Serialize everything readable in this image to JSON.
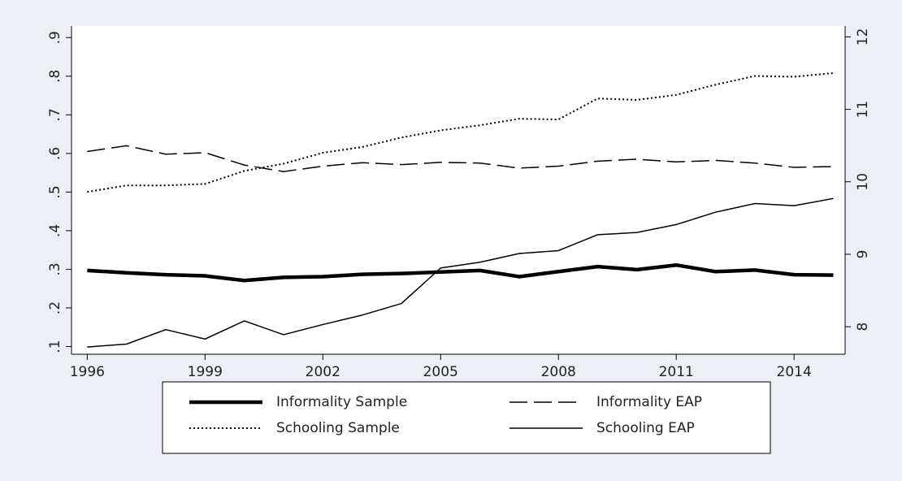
{
  "chart_data": {
    "type": "line",
    "x": [
      1996,
      1997,
      1998,
      1999,
      2000,
      2001,
      2002,
      2003,
      2004,
      2005,
      2006,
      2007,
      2008,
      2009,
      2010,
      2011,
      2012,
      2013,
      2014,
      2015
    ],
    "xlim": [
      1995.6,
      2015.3
    ],
    "xticks": [
      1996,
      1999,
      2002,
      2005,
      2008,
      2011,
      2014
    ],
    "ylim": [
      0.08,
      0.93
    ],
    "yticks": [
      {
        "value": 0.1,
        "label": ".1"
      },
      {
        "value": 0.2,
        "label": ".2"
      },
      {
        "value": 0.3,
        "label": ".3"
      },
      {
        "value": 0.4,
        "label": ".4"
      },
      {
        "value": 0.5,
        "label": ".5"
      },
      {
        "value": 0.6,
        "label": ".6"
      },
      {
        "value": 0.7,
        "label": ".7"
      },
      {
        "value": 0.8,
        "label": ".8"
      },
      {
        "value": 0.9,
        "label": ".9"
      }
    ],
    "y2lim": [
      7.62,
      12.15
    ],
    "y2ticks": [
      8,
      9,
      10,
      11,
      12
    ],
    "series": [
      {
        "name": "Informality Sample",
        "color": "#000000",
        "style": "thick",
        "values": [
          0.297,
          0.291,
          0.286,
          0.283,
          0.271,
          0.279,
          0.281,
          0.287,
          0.289,
          0.293,
          0.297,
          0.281,
          0.294,
          0.307,
          0.299,
          0.311,
          0.294,
          0.298,
          0.286,
          0.285
        ]
      },
      {
        "name": "Informality EAP",
        "color": "#000000",
        "style": "dashed",
        "values": [
          0.605,
          0.62,
          0.598,
          0.602,
          0.57,
          0.553,
          0.567,
          0.576,
          0.571,
          0.577,
          0.575,
          0.562,
          0.567,
          0.58,
          0.585,
          0.578,
          0.582,
          0.575,
          0.564,
          0.566
        ]
      },
      {
        "name": "Schooling Sample",
        "color": "#000000",
        "style": "dotted",
        "axis": "y2",
        "values": [
          9.86,
          9.95,
          9.95,
          9.97,
          10.15,
          10.25,
          10.4,
          10.48,
          10.61,
          10.71,
          10.78,
          10.87,
          10.86,
          11.15,
          11.13,
          11.2,
          11.34,
          11.46,
          11.45,
          11.5
        ]
      },
      {
        "name": "Schooling EAP",
        "color": "#000000",
        "style": "solid",
        "axis": "y2",
        "values": [
          7.72,
          7.76,
          7.96,
          7.83,
          8.08,
          7.89,
          8.03,
          8.16,
          8.32,
          8.81,
          8.89,
          9.01,
          9.05,
          9.27,
          9.3,
          9.41,
          9.58,
          9.7,
          9.67,
          9.77
        ]
      }
    ],
    "legend": "bottom"
  }
}
